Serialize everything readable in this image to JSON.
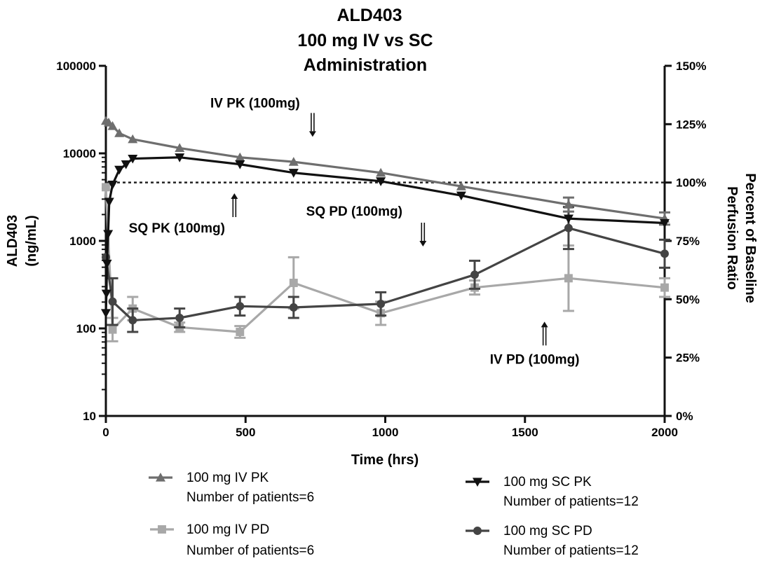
{
  "chart_data": {
    "type": "line",
    "title": [
      "ALD403",
      "100 mg IV vs SC",
      "Administration"
    ],
    "xlabel": "Time (hrs)",
    "ylabel_left": [
      "ALD403",
      "(ng/mL)"
    ],
    "ylabel_right": [
      "Percent of Baseline",
      "Perfusion Ratio"
    ],
    "x_range": [
      0,
      2000
    ],
    "x_ticks": [
      "0",
      "500",
      "1000",
      "1500",
      "2000"
    ],
    "y_left_scale": "log",
    "y_left_range": [
      10,
      100000
    ],
    "y_left_ticks": [
      "10",
      "100",
      "1000",
      "10000",
      "100000"
    ],
    "y_right_range": [
      0,
      150
    ],
    "y_right_ticks": [
      "0%",
      "25%",
      "50%",
      "75%",
      "100%",
      "125%",
      "150%"
    ],
    "reference_line": {
      "axis": "right",
      "value": 100,
      "label": "100%"
    },
    "series": [
      {
        "name": "100 mg IV PK",
        "patients": "Number of patients=6",
        "axis": "left",
        "marker": "triangle-up",
        "color": "#6e6e6e",
        "points": [
          [
            0,
            23500
          ],
          [
            10,
            22500
          ],
          [
            24,
            20500
          ],
          [
            48,
            17000
          ],
          [
            96,
            14500
          ],
          [
            264,
            11500
          ],
          [
            480,
            9000
          ],
          [
            672,
            8000
          ],
          [
            984,
            6000
          ],
          [
            1272,
            4200
          ],
          [
            1656,
            2600
          ],
          [
            2000,
            1800
          ]
        ],
        "err": [
          0,
          0,
          0,
          0,
          0,
          0,
          0,
          0,
          0,
          0,
          0.08,
          0.07
        ]
      },
      {
        "name": "100 mg SC PK",
        "patients": "Number of patients=12",
        "axis": "left",
        "marker": "triangle-down",
        "color": "#111111",
        "points": [
          [
            0,
            150
          ],
          [
            2,
            250
          ],
          [
            4,
            550
          ],
          [
            8,
            1200
          ],
          [
            12,
            2800
          ],
          [
            24,
            4400
          ],
          [
            48,
            6500
          ],
          [
            72,
            7500
          ],
          [
            96,
            8700
          ],
          [
            264,
            9000
          ],
          [
            480,
            7500
          ],
          [
            672,
            6000
          ],
          [
            984,
            4800
          ],
          [
            1272,
            3300
          ],
          [
            1656,
            1800
          ],
          [
            2000,
            1600
          ]
        ],
        "err": [
          0,
          0,
          0,
          0,
          0,
          0,
          0,
          0,
          0,
          0,
          0,
          0,
          0,
          0,
          0,
          0
        ]
      },
      {
        "name": "100 mg IV PD",
        "patients": "Number of patients=6",
        "axis": "right",
        "marker": "square",
        "color": "#a8a8a8",
        "points": [
          [
            0,
            98
          ],
          [
            24,
            37
          ],
          [
            96,
            46
          ],
          [
            264,
            38
          ],
          [
            480,
            36
          ],
          [
            672,
            57
          ],
          [
            984,
            44
          ],
          [
            1320,
            55
          ],
          [
            1656,
            59
          ],
          [
            2000,
            55
          ]
        ],
        "err": [
          0,
          5,
          5,
          2,
          2.5,
          11,
          5,
          3,
          14,
          4
        ]
      },
      {
        "name": "100 mg SC PD",
        "patients": "Number of patients=12",
        "axis": "right",
        "marker": "circle",
        "color": "#444444",
        "points": [
          [
            0,
            68
          ],
          [
            24,
            49
          ],
          [
            96,
            41
          ],
          [
            264,
            42
          ],
          [
            480,
            47
          ],
          [
            672,
            46.5
          ],
          [
            984,
            48
          ],
          [
            1320,
            60.5
          ],
          [
            1656,
            80.5
          ],
          [
            2000,
            69.5
          ]
        ],
        "err": [
          0,
          10,
          5,
          4,
          4,
          4.5,
          5,
          6,
          9,
          6
        ]
      }
    ],
    "annotations": [
      {
        "text": "IV PK (100mg)",
        "x": 740,
        "y_right": 122,
        "arrow": "down"
      },
      {
        "text": "SQ PK (100mg)",
        "x": 460,
        "y_right": 93,
        "arrow": "up"
      },
      {
        "text": "SQ PD (100mg)",
        "x": 1135,
        "y_right": 75,
        "arrow": "down"
      },
      {
        "text": "IV PD (100mg)",
        "x": 1570,
        "y_right": 38,
        "arrow": "up"
      }
    ]
  }
}
